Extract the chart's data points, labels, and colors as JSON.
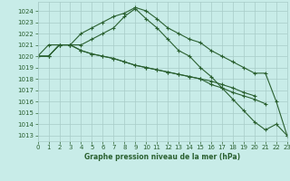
{
  "background_color": "#c8ece8",
  "grid_color": "#a8ccc8",
  "line_color": "#2a6030",
  "title": "Graphe pression niveau de la mer (hPa)",
  "xlim": [
    0,
    23
  ],
  "ylim": [
    1012.5,
    1024.8
  ],
  "ytick_vals": [
    1013,
    1014,
    1015,
    1016,
    1017,
    1018,
    1019,
    1020,
    1021,
    1022,
    1023,
    1024
  ],
  "xtick_vals": [
    0,
    1,
    2,
    3,
    4,
    5,
    6,
    7,
    8,
    9,
    10,
    11,
    12,
    13,
    14,
    15,
    16,
    17,
    18,
    19,
    20,
    21,
    22,
    23
  ],
  "series": [
    {
      "x": [
        0,
        1,
        2,
        3,
        4,
        5,
        6,
        7,
        8,
        9,
        10,
        11,
        12,
        13,
        14,
        15,
        16,
        17,
        18,
        19,
        20,
        21,
        22,
        23
      ],
      "y": [
        1020.0,
        1020.0,
        1021.0,
        1021.0,
        1022.0,
        1022.5,
        1023.0,
        1023.5,
        1023.8,
        1024.3,
        1024.0,
        1023.3,
        1022.5,
        1022.0,
        1021.5,
        1021.2,
        1020.5,
        1020.0,
        1019.5,
        1019.0,
        1018.5,
        1018.5,
        1016.0,
        1013.0
      ]
    },
    {
      "x": [
        0,
        1,
        2,
        3,
        4,
        5,
        6,
        7,
        8,
        9,
        10,
        11,
        12,
        13,
        14,
        15,
        16,
        17,
        18,
        19,
        20,
        21,
        22,
        23
      ],
      "y": [
        1020.0,
        1021.0,
        1021.0,
        1021.0,
        1021.0,
        1021.5,
        1022.0,
        1022.5,
        1023.5,
        1024.2,
        1023.3,
        1022.5,
        1021.5,
        1020.5,
        1020.0,
        1019.0,
        1018.2,
        1017.2,
        1016.2,
        1015.2,
        1014.2,
        1013.5,
        1014.0,
        1013.0
      ]
    },
    {
      "x": [
        0,
        1,
        2,
        3,
        4,
        5,
        6,
        7,
        8,
        9,
        10,
        11,
        12,
        13,
        14,
        15,
        16,
        17,
        18,
        19,
        20
      ],
      "y": [
        1020.0,
        1020.0,
        1021.0,
        1021.0,
        1020.5,
        1020.2,
        1020.0,
        1019.8,
        1019.5,
        1019.2,
        1019.0,
        1018.8,
        1018.6,
        1018.4,
        1018.2,
        1018.0,
        1017.8,
        1017.5,
        1017.2,
        1016.8,
        1016.5
      ]
    },
    {
      "x": [
        0,
        1,
        2,
        3,
        4,
        5,
        6,
        7,
        8,
        9,
        10,
        11,
        12,
        13,
        14,
        15,
        16,
        17,
        18,
        19,
        20,
        21
      ],
      "y": [
        1020.0,
        1020.0,
        1021.0,
        1021.0,
        1020.5,
        1020.2,
        1020.0,
        1019.8,
        1019.5,
        1019.2,
        1019.0,
        1018.8,
        1018.6,
        1018.4,
        1018.2,
        1018.0,
        1017.5,
        1017.2,
        1016.8,
        1016.5,
        1016.2,
        1015.8
      ]
    }
  ]
}
